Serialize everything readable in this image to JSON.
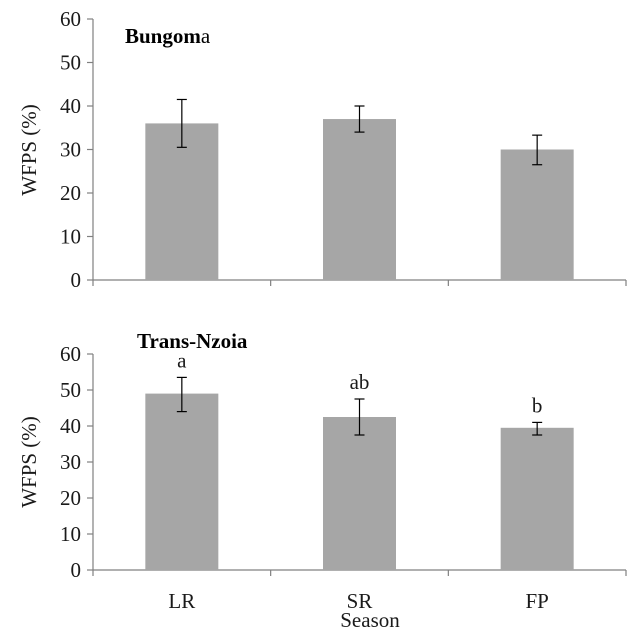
{
  "chart_data": [
    {
      "type": "bar",
      "title_bold": "Bungom",
      "title_normal": "a",
      "ylabel": "WFPS (%)",
      "xlabel": "",
      "categories": [
        "LR",
        "SR",
        "FP"
      ],
      "show_category_labels": false,
      "values": [
        36,
        37,
        30
      ],
      "error": [
        [
          30.5,
          41.5
        ],
        [
          34,
          40
        ],
        [
          26.5,
          33.3
        ]
      ],
      "sig_letters": [
        "",
        "",
        ""
      ],
      "ylim": [
        0,
        60
      ],
      "yticks": [
        "0",
        "10",
        "20",
        "30",
        "40",
        "50",
        "60"
      ],
      "bar_color": "#a6a6a6",
      "grid": false
    },
    {
      "type": "bar",
      "title_bold": "Trans-Nzoia",
      "title_normal": "",
      "ylabel": "WFPS (%)",
      "xlabel": "Season",
      "categories": [
        "LR",
        "SR",
        "FP"
      ],
      "show_category_labels": true,
      "values": [
        49,
        42.5,
        39.5
      ],
      "error": [
        [
          44,
          53.5
        ],
        [
          37.5,
          47.5
        ],
        [
          37.5,
          41
        ]
      ],
      "sig_letters": [
        "a",
        "ab",
        "b"
      ],
      "ylim": [
        0,
        60
      ],
      "yticks": [
        "0",
        "10",
        "20",
        "30",
        "40",
        "50",
        "60"
      ],
      "bar_color": "#a6a6a6",
      "grid": false
    }
  ]
}
